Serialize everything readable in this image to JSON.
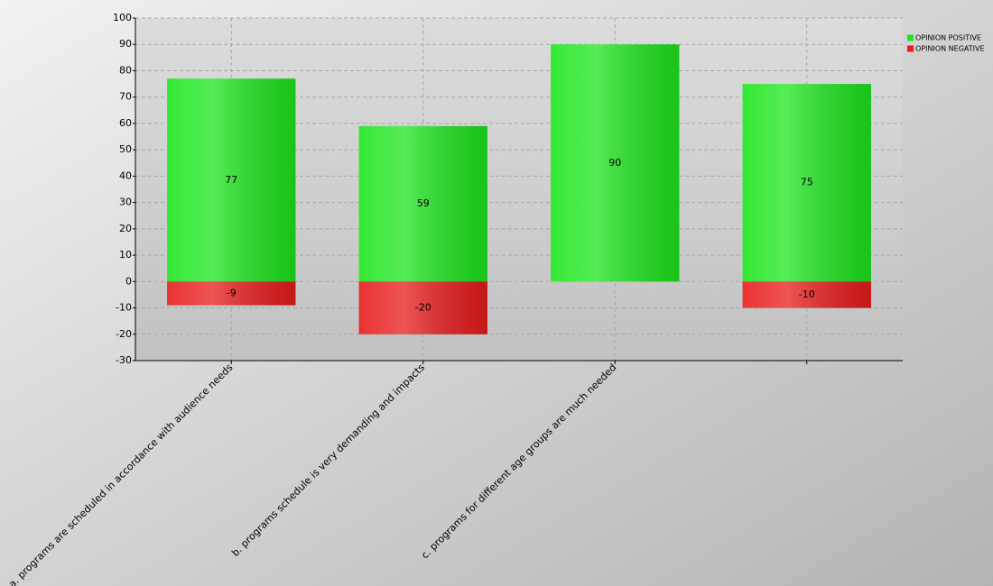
{
  "chart_data": {
    "type": "bar",
    "categories": [
      "a. programs are scheduled in accordance with audience needs",
      "b. programs schedule is very demanding and impacts",
      "c. programs for different age groups are much needed",
      null
    ],
    "series": [
      {
        "name": "OPINION POSITIVE",
        "color": "#1ee61e",
        "values": [
          77,
          59,
          90,
          75
        ]
      },
      {
        "name": "OPINION NEGATIVE",
        "color": "#e81c1c",
        "values": [
          -9,
          -20,
          null,
          -10
        ]
      }
    ],
    "ylim": [
      -30,
      100
    ],
    "yticks": [
      -30,
      -20,
      -10,
      0,
      10,
      20,
      30,
      40,
      50,
      60,
      70,
      80,
      90,
      100
    ],
    "grid": true,
    "legend": "top-right"
  }
}
